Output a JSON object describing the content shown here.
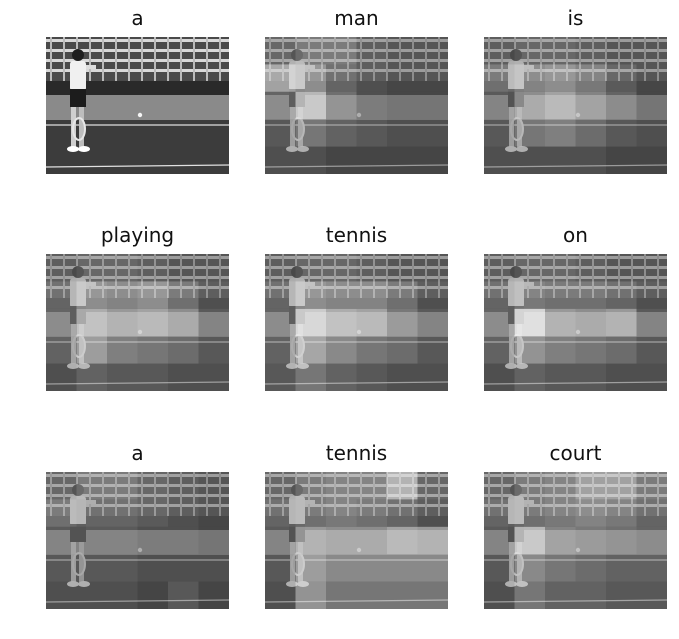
{
  "words": [
    "a",
    "man",
    "is",
    "playing",
    "tennis",
    "on",
    "a",
    "tennis",
    "court"
  ],
  "attention": [
    null,
    [
      [
        0.2,
        0.3,
        0.3,
        0.15,
        0.1,
        0.1
      ],
      [
        0.55,
        0.45,
        0.25,
        0.15,
        0.1,
        0.1
      ],
      [
        0.25,
        0.65,
        0.3,
        0.15,
        0.1,
        0.1
      ],
      [
        0.15,
        0.3,
        0.2,
        0.15,
        0.1,
        0.1
      ],
      [
        0.1,
        0.1,
        0.05,
        0.05,
        0.05,
        0.05
      ]
    ],
    [
      [
        0.15,
        0.2,
        0.2,
        0.15,
        0.1,
        0.1
      ],
      [
        0.3,
        0.4,
        0.45,
        0.35,
        0.2,
        0.1
      ],
      [
        0.2,
        0.45,
        0.55,
        0.4,
        0.25,
        0.1
      ],
      [
        0.15,
        0.3,
        0.35,
        0.25,
        0.15,
        0.1
      ],
      [
        0.1,
        0.1,
        0.1,
        0.1,
        0.05,
        0.05
      ]
    ],
    [
      [
        0.15,
        0.2,
        0.2,
        0.15,
        0.1,
        0.1
      ],
      [
        0.25,
        0.45,
        0.4,
        0.45,
        0.3,
        0.15
      ],
      [
        0.25,
        0.6,
        0.5,
        0.55,
        0.45,
        0.2
      ],
      [
        0.2,
        0.5,
        0.35,
        0.3,
        0.25,
        0.15
      ],
      [
        0.1,
        0.2,
        0.15,
        0.15,
        0.1,
        0.1
      ]
    ],
    [
      [
        0.15,
        0.2,
        0.2,
        0.15,
        0.1,
        0.1
      ],
      [
        0.25,
        0.45,
        0.4,
        0.4,
        0.3,
        0.15
      ],
      [
        0.25,
        0.75,
        0.6,
        0.55,
        0.35,
        0.2
      ],
      [
        0.2,
        0.55,
        0.4,
        0.3,
        0.25,
        0.15
      ],
      [
        0.15,
        0.3,
        0.2,
        0.15,
        0.1,
        0.1
      ]
    ],
    [
      [
        0.15,
        0.2,
        0.2,
        0.15,
        0.1,
        0.1
      ],
      [
        0.25,
        0.35,
        0.3,
        0.3,
        0.25,
        0.15
      ],
      [
        0.25,
        0.8,
        0.5,
        0.45,
        0.5,
        0.2
      ],
      [
        0.2,
        0.45,
        0.35,
        0.3,
        0.25,
        0.15
      ],
      [
        0.1,
        0.2,
        0.15,
        0.15,
        0.1,
        0.1
      ]
    ],
    [
      [
        0.2,
        0.3,
        0.3,
        0.2,
        0.15,
        0.1
      ],
      [
        0.3,
        0.25,
        0.25,
        0.2,
        0.15,
        0.1
      ],
      [
        0.2,
        0.2,
        0.2,
        0.15,
        0.15,
        0.1
      ],
      [
        0.15,
        0.15,
        0.15,
        0.1,
        0.1,
        0.1
      ],
      [
        0.1,
        0.1,
        0.1,
        0.05,
        0.15,
        0.05
      ]
    ],
    [
      [
        0.2,
        0.3,
        0.35,
        0.35,
        0.6,
        0.2
      ],
      [
        0.25,
        0.3,
        0.35,
        0.3,
        0.25,
        0.15
      ],
      [
        0.2,
        0.5,
        0.45,
        0.45,
        0.55,
        0.5
      ],
      [
        0.15,
        0.5,
        0.4,
        0.4,
        0.4,
        0.4
      ],
      [
        0.1,
        0.45,
        0.3,
        0.3,
        0.3,
        0.3
      ]
    ],
    [
      [
        0.2,
        0.3,
        0.35,
        0.5,
        0.5,
        0.3
      ],
      [
        0.25,
        0.3,
        0.35,
        0.4,
        0.35,
        0.25
      ],
      [
        0.2,
        0.65,
        0.4,
        0.35,
        0.3,
        0.25
      ],
      [
        0.15,
        0.4,
        0.3,
        0.25,
        0.2,
        0.2
      ],
      [
        0.1,
        0.3,
        0.2,
        0.2,
        0.15,
        0.15
      ]
    ]
  ]
}
